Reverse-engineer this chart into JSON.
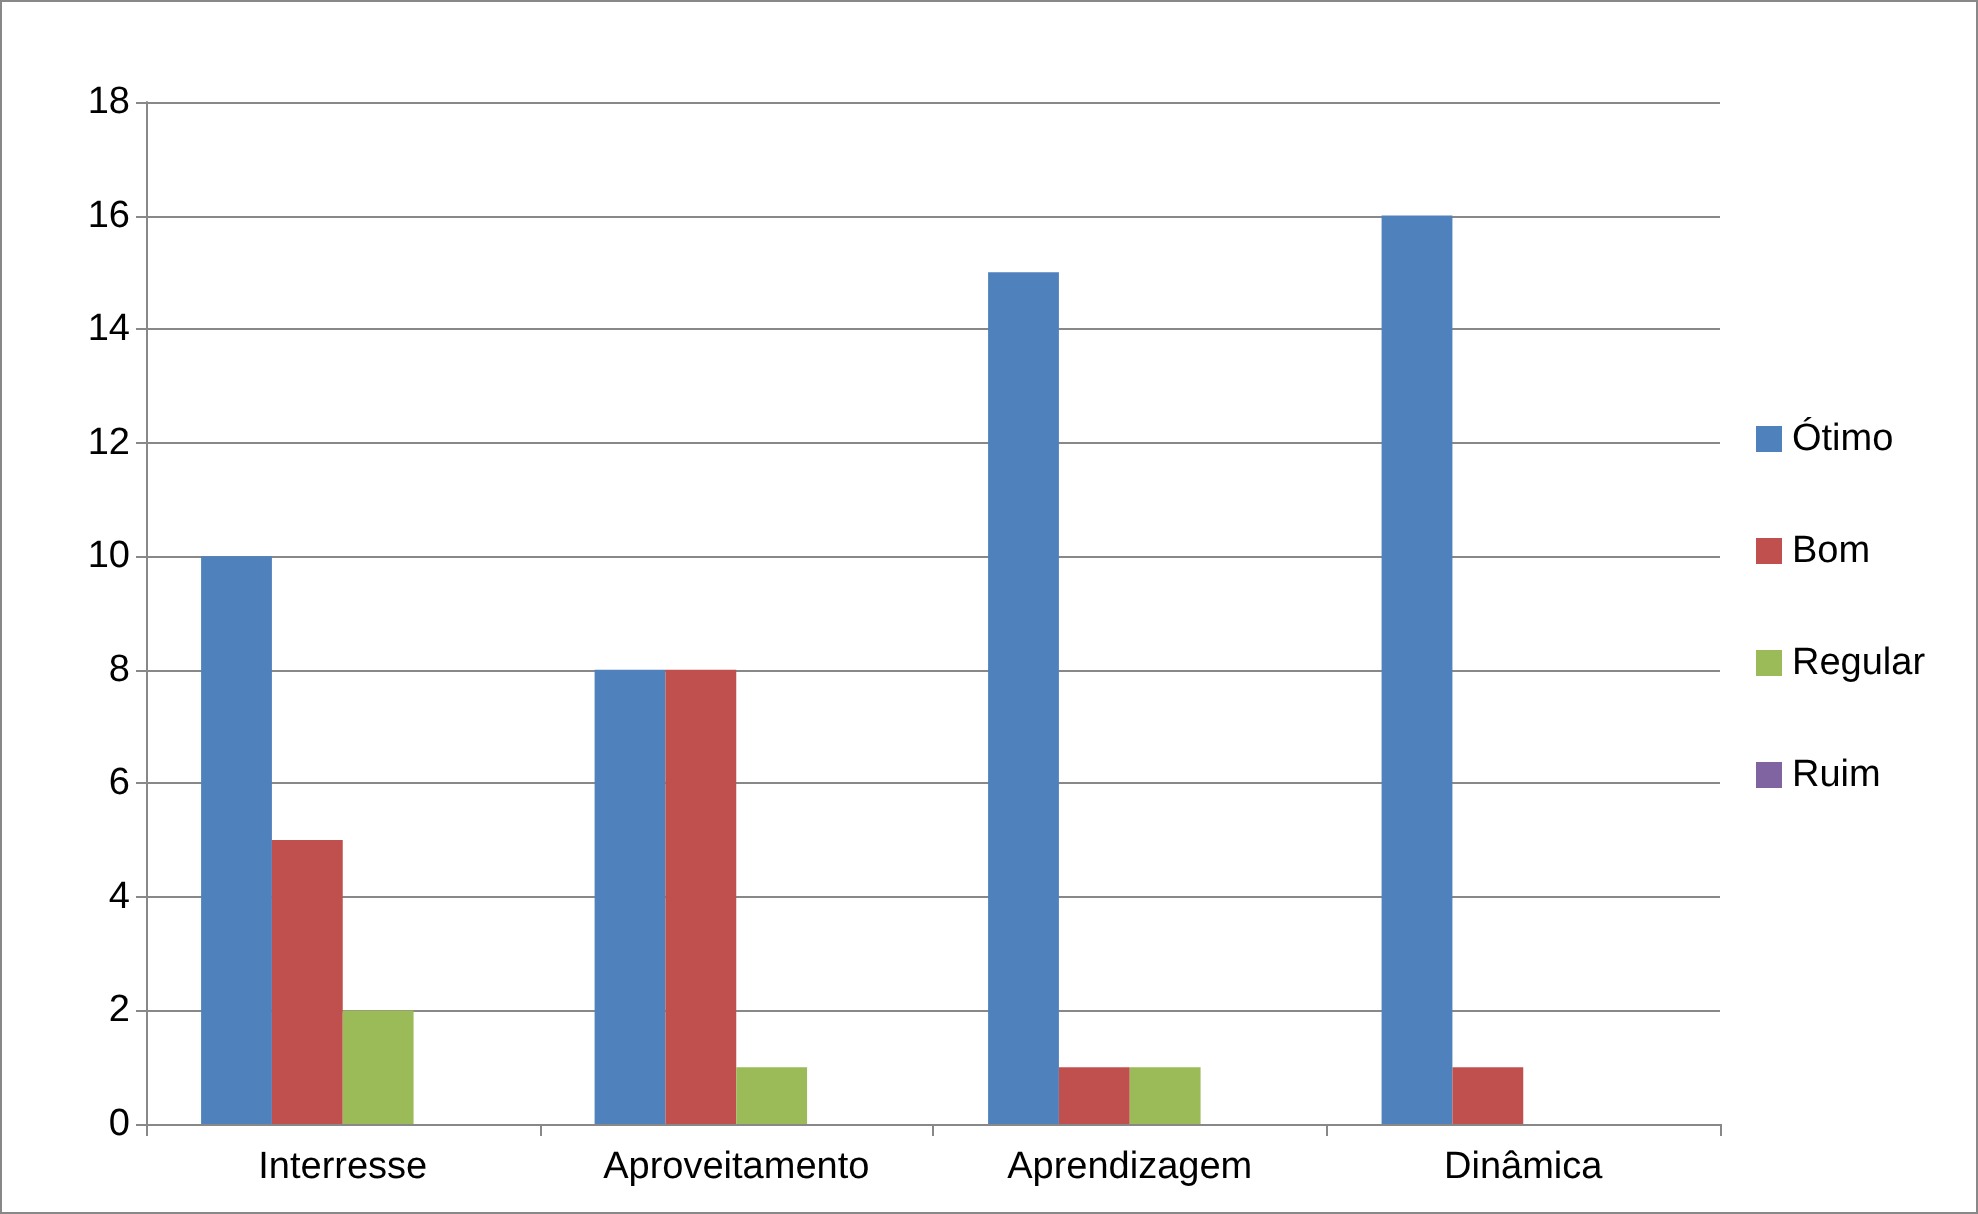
{
  "chart_data": {
    "type": "bar",
    "categories": [
      "Interresse",
      "Aproveitamento",
      "Aprendizagem",
      "Dinâmica"
    ],
    "series": [
      {
        "name": "Ótimo",
        "color": "#4f81bd",
        "values": [
          10,
          8,
          15,
          16
        ]
      },
      {
        "name": "Bom",
        "color": "#c0504d",
        "values": [
          5,
          8,
          1,
          1
        ]
      },
      {
        "name": "Regular",
        "color": "#9bbb59",
        "values": [
          2,
          1,
          1,
          0
        ]
      },
      {
        "name": "Ruim",
        "color": "#8064a2",
        "values": [
          0,
          0,
          0,
          0
        ]
      }
    ],
    "ylim": [
      0,
      18
    ],
    "yticks": [
      0,
      2,
      4,
      6,
      8,
      10,
      12,
      14,
      16,
      18
    ],
    "grid": "y",
    "legend": "right"
  }
}
